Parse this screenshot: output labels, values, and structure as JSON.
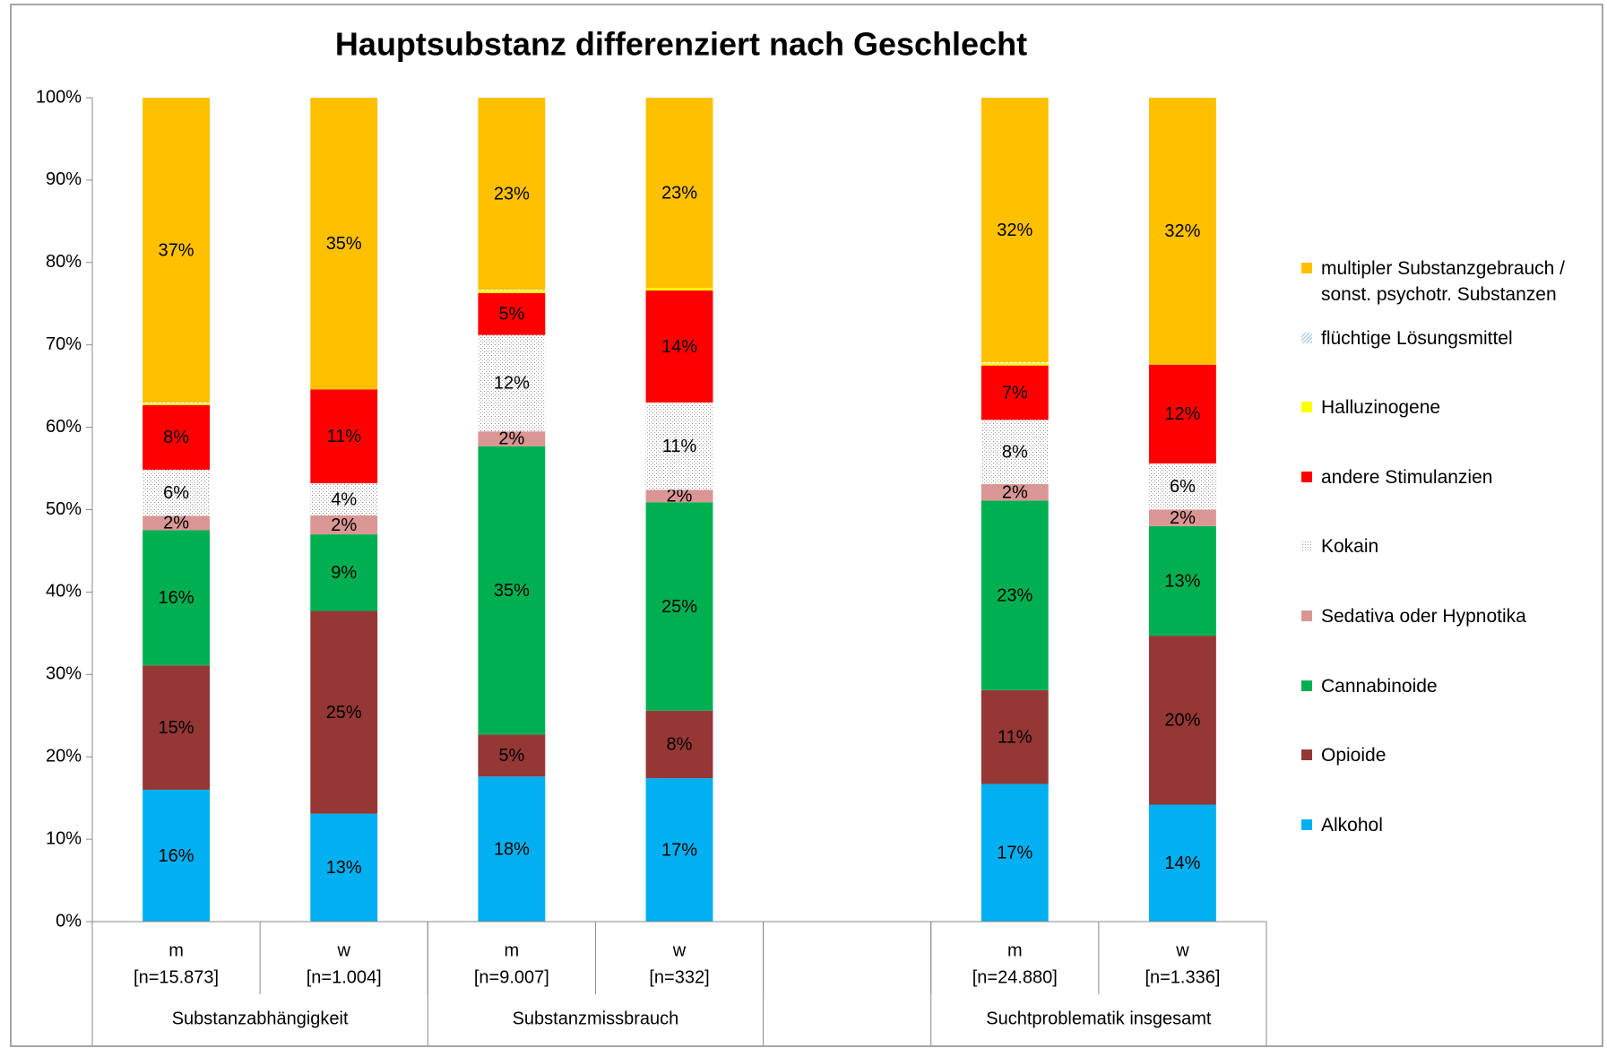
{
  "chart_data": {
    "type": "stacked_bar",
    "title": "Hauptsubstanz differenziert nach Geschlecht",
    "categories": [
      "m",
      "w",
      "m",
      "w",
      null,
      "m",
      "w"
    ],
    "category_n": [
      "[n=15.873]",
      "[n=1.004]",
      "[n=9.007]",
      "[n=332]",
      null,
      "[n=24.880]",
      "[n=1.336]"
    ],
    "groups": [
      {
        "name": "Substanzabhängigkeit",
        "size": 2
      },
      {
        "name": "Substanzmissbrauch",
        "size": 2
      },
      {
        "name": null,
        "size": 1
      },
      {
        "name": "Suchtproblematik insgesamt",
        "size": 2
      }
    ],
    "ylim": [
      0,
      100
    ],
    "yticks": [
      {
        "value": 0,
        "label": "0%"
      },
      {
        "value": 10,
        "label": "10%"
      },
      {
        "value": 20,
        "label": "20%"
      },
      {
        "value": 30,
        "label": "30%"
      },
      {
        "value": 40,
        "label": "40%"
      },
      {
        "value": 50,
        "label": "50%"
      },
      {
        "value": 60,
        "label": "60%"
      },
      {
        "value": 70,
        "label": "70%"
      },
      {
        "value": 80,
        "label": "80%"
      },
      {
        "value": 90,
        "label": "90%"
      },
      {
        "value": 100,
        "label": "100%"
      }
    ],
    "grid": false,
    "legend": "right",
    "series": [
      {
        "name": "Alkohol",
        "color": "#00b0f0",
        "values": [
          16.0,
          13.1,
          17.6,
          17.4,
          null,
          16.7,
          14.2
        ],
        "value_labels": [
          "16%",
          "13%",
          "18%",
          "17%",
          null,
          "17%",
          "14%"
        ]
      },
      {
        "name": "Opioide",
        "color": "#953735",
        "values": [
          15.1,
          24.6,
          5.1,
          8.2,
          null,
          11.4,
          20.5
        ],
        "value_labels": [
          "15%",
          "25%",
          "5%",
          "8%",
          null,
          "11%",
          "20%"
        ]
      },
      {
        "name": "Cannabinoide",
        "color": "#00b050",
        "values": [
          16.4,
          9.3,
          35.0,
          25.3,
          null,
          23.0,
          13.3
        ],
        "value_labels": [
          "16%",
          "9%",
          "35%",
          "25%",
          null,
          "23%",
          "13%"
        ]
      },
      {
        "name": "Sedativa oder Hypnotika",
        "color": "#da9694",
        "values": [
          1.75,
          2.3,
          1.8,
          1.5,
          null,
          2.0,
          2.0
        ],
        "value_labels": [
          "2%",
          "2%",
          "2%",
          "2%",
          null,
          "2%",
          "2%"
        ]
      },
      {
        "name": "Kokain",
        "color": "#bfbfbf",
        "pattern": "dots",
        "values": [
          5.6,
          3.9,
          11.7,
          10.6,
          null,
          7.8,
          5.6
        ],
        "value_labels": [
          "6%",
          "4%",
          "12%",
          "11%",
          null,
          "8%",
          "6%"
        ]
      },
      {
        "name": "andere Stimulanzien",
        "color": "#ff0000",
        "values": [
          7.85,
          11.4,
          5.1,
          13.6,
          null,
          6.6,
          12.0
        ],
        "value_labels": [
          "8%",
          "11%",
          "5%",
          "14%",
          null,
          "7%",
          "12%"
        ]
      },
      {
        "name": "Halluzinogene",
        "color": "#ffff00",
        "values": [
          0.2,
          0.0,
          0.3,
          0.3,
          null,
          0.3,
          0.0
        ],
        "value_labels": [
          null,
          null,
          null,
          null,
          null,
          null,
          null
        ]
      },
      {
        "name": "flüchtige Lösungsmittel",
        "color": "#9dc3e6",
        "pattern": "hatch",
        "values": [
          0.1,
          0.0,
          0.1,
          0.0,
          null,
          0.1,
          0.0
        ],
        "value_labels": [
          null,
          null,
          null,
          null,
          null,
          null,
          null
        ]
      },
      {
        "name": "multipler Substanzgebrauch / sonst. psychotr. Substanzen",
        "color": "#ffc000",
        "values": [
          37.0,
          35.4,
          23.3,
          23.1,
          null,
          32.1,
          32.4
        ],
        "value_labels": [
          "37%",
          "35%",
          "23%",
          "23%",
          null,
          "32%",
          "32%"
        ]
      }
    ]
  }
}
